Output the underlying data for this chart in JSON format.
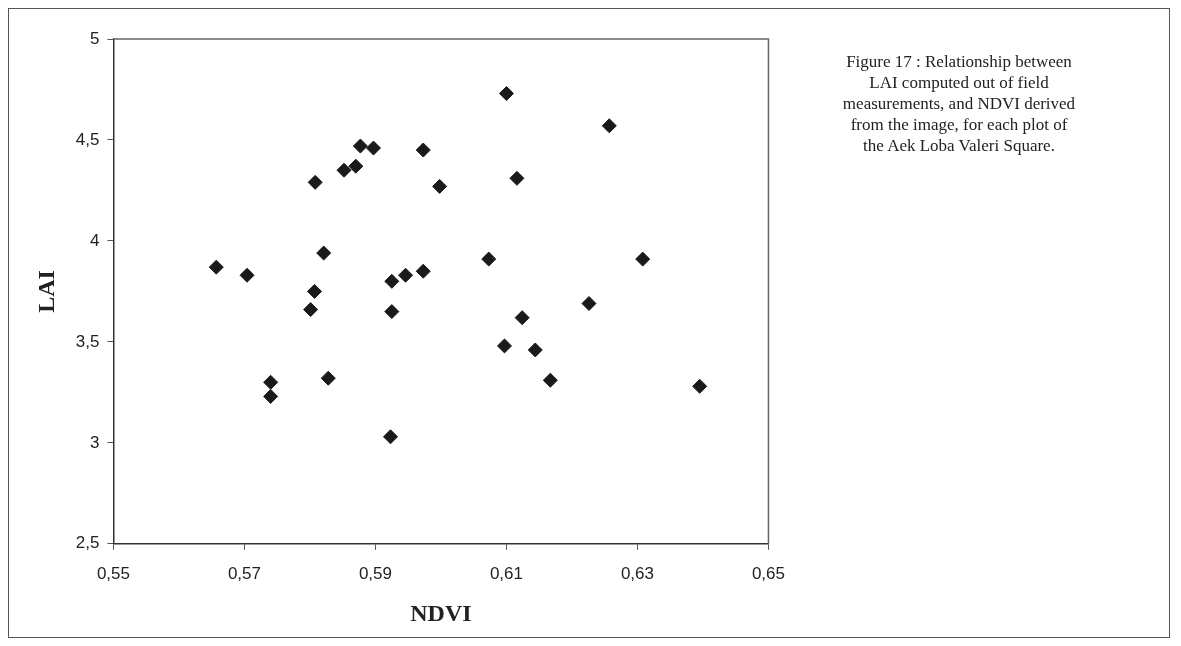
{
  "chart_data": {
    "type": "scatter",
    "xlabel": "NDVI",
    "ylabel": "LAI",
    "annotations": [
      "Figure 17 : Relationship between LAI computed out of field measurements, and NDVI derived from the image, for each plot of the Aek Loba Valeri Square."
    ],
    "series": [
      {
        "color": "#1a1a1a",
        "x": [
          0.5657,
          0.5704,
          0.5808,
          0.5821,
          0.5807,
          0.5801,
          0.5852,
          0.587,
          0.5877,
          0.5897,
          0.5973,
          0.5998,
          0.5925,
          0.5946,
          0.5973,
          0.6073,
          0.5925,
          0.61,
          0.574,
          0.574,
          0.5828,
          0.5923,
          0.6097,
          0.6257,
          0.6116,
          0.6308,
          0.6226,
          0.6124,
          0.6144,
          0.6167,
          0.6395
        ],
        "values": [
          3.87,
          3.83,
          4.29,
          3.94,
          3.75,
          3.66,
          4.35,
          4.37,
          4.47,
          4.46,
          4.45,
          4.27,
          3.8,
          3.83,
          3.85,
          3.91,
          3.65,
          4.73,
          3.3,
          3.23,
          3.32,
          3.03,
          3.48,
          4.57,
          4.31,
          3.91,
          3.69,
          3.62,
          3.46,
          3.31,
          3.28
        ]
      }
    ],
    "xlim": [
      0.55,
      0.65
    ],
    "xticks": [
      {
        "value": 0.55,
        "label": "0,55"
      },
      {
        "value": 0.57,
        "label": "0,57"
      },
      {
        "value": 0.59,
        "label": "0,59"
      },
      {
        "value": 0.61,
        "label": "0,61"
      },
      {
        "value": 0.63,
        "label": "0,63"
      },
      {
        "value": 0.65,
        "label": "0,65"
      }
    ],
    "ylim": [
      2.5,
      5
    ],
    "yticks": [
      {
        "value": 2.5,
        "label": "2,5"
      },
      3,
      {
        "value": 3.5,
        "label": "3,5"
      },
      4,
      {
        "value": 4.5,
        "label": "4,5"
      },
      5
    ],
    "grid": false,
    "legend": false,
    "marker": "diamond"
  }
}
